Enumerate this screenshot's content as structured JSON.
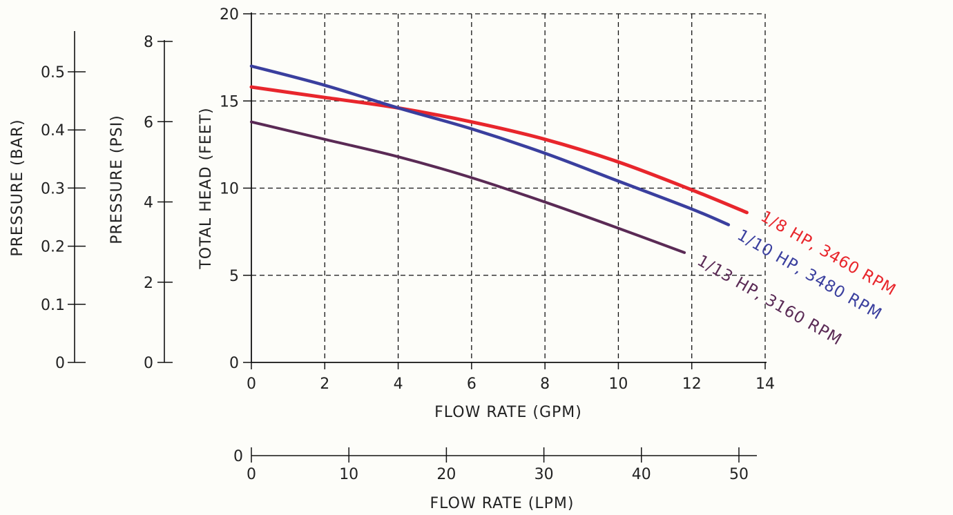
{
  "chart_data": {
    "type": "line",
    "title": "",
    "xlabel": "FLOW RATE (GPM)",
    "ylabel": "TOTAL HEAD (FEET)",
    "xlim": [
      0,
      14
    ],
    "ylim": [
      0,
      20
    ],
    "x_ticks": [
      "0",
      "2",
      "4",
      "6",
      "8",
      "10",
      "12",
      "14"
    ],
    "y_ticks": [
      "0",
      "5",
      "10",
      "15",
      "20"
    ],
    "grid": true,
    "secondary_axes": {
      "psi": {
        "label": "PRESSURE (PSI)",
        "ticks": [
          "0",
          "2",
          "4",
          "6",
          "8"
        ]
      },
      "bar": {
        "label": "PRESSURE (BAR)",
        "ticks": [
          "0",
          "0.1",
          "0.2",
          "0.3",
          "0.4",
          "0.5"
        ]
      },
      "lpm": {
        "label": "FLOW RATE (LPM)",
        "ticks": [
          "0",
          "10",
          "20",
          "30",
          "40",
          "50"
        ],
        "left_label": "0"
      }
    },
    "series": [
      {
        "name": "1/8 HP, 3460 RPM",
        "color": "#e8262c",
        "points": [
          [
            0,
            15.8
          ],
          [
            2,
            15.2
          ],
          [
            4,
            14.6
          ],
          [
            6,
            13.8
          ],
          [
            8,
            12.8
          ],
          [
            10,
            11.5
          ],
          [
            12,
            9.9
          ],
          [
            13.5,
            8.6
          ]
        ]
      },
      {
        "name": "1/10 HP, 3480 RPM",
        "color": "#3a3f9e",
        "points": [
          [
            0,
            17.0
          ],
          [
            2,
            15.9
          ],
          [
            4,
            14.6
          ],
          [
            6,
            13.4
          ],
          [
            8,
            12.0
          ],
          [
            10,
            10.4
          ],
          [
            12,
            8.8
          ],
          [
            13,
            7.9
          ]
        ]
      },
      {
        "name": "1/13 HP, 3160 RPM",
        "color": "#5a2a55",
        "points": [
          [
            0,
            13.8
          ],
          [
            2,
            12.8
          ],
          [
            4,
            11.8
          ],
          [
            6,
            10.6
          ],
          [
            8,
            9.2
          ],
          [
            10,
            7.7
          ],
          [
            11.8,
            6.3
          ]
        ]
      }
    ]
  }
}
